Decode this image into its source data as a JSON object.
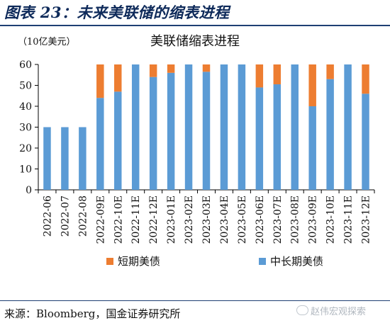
{
  "figure": {
    "title": "图表 23：未来美联储的缩表进程",
    "unit": "（10亿美元）",
    "source": "来源：Bloomberg，国金证券研究所",
    "watermark": "赵伟宏观探索"
  },
  "colors": {
    "short_term": "#ed7d31",
    "long_term": "#5b9bd5",
    "axis": "#000000"
  },
  "chart_data": {
    "type": "bar",
    "stacked": true,
    "title": "美联储缩表进程",
    "xlabel": "",
    "ylabel": "（10亿美元）",
    "ylim": [
      0,
      60
    ],
    "yticks": [
      0,
      10,
      20,
      30,
      40,
      50,
      60
    ],
    "grid": false,
    "legend_position": "bottom",
    "categories": [
      "2022-06",
      "2022-07",
      "2022-08",
      "2022-09E",
      "2022-10E",
      "2022-11E",
      "2022-12E",
      "2023-01E",
      "2023-02E",
      "2023-03E",
      "2023-04E",
      "2023-05E",
      "2023-06E",
      "2023-07E",
      "2023-08E",
      "2023-09E",
      "2023-10E",
      "2023-11E",
      "2023-12E"
    ],
    "series": [
      {
        "name": "中长期美债",
        "color": "#5b9bd5",
        "values": [
          30,
          30,
          30,
          44,
          47,
          60,
          54,
          56,
          60,
          56.5,
          60,
          60,
          49,
          50.5,
          60,
          40,
          53,
          60,
          46
        ]
      },
      {
        "name": "短期美债",
        "color": "#ed7d31",
        "values": [
          0,
          0,
          0,
          16,
          13,
          0,
          6,
          4,
          0,
          3.5,
          0,
          0,
          11,
          9.5,
          0,
          20,
          7,
          0,
          14
        ]
      }
    ],
    "legend_order": [
      "短期美债",
      "中长期美债"
    ]
  }
}
